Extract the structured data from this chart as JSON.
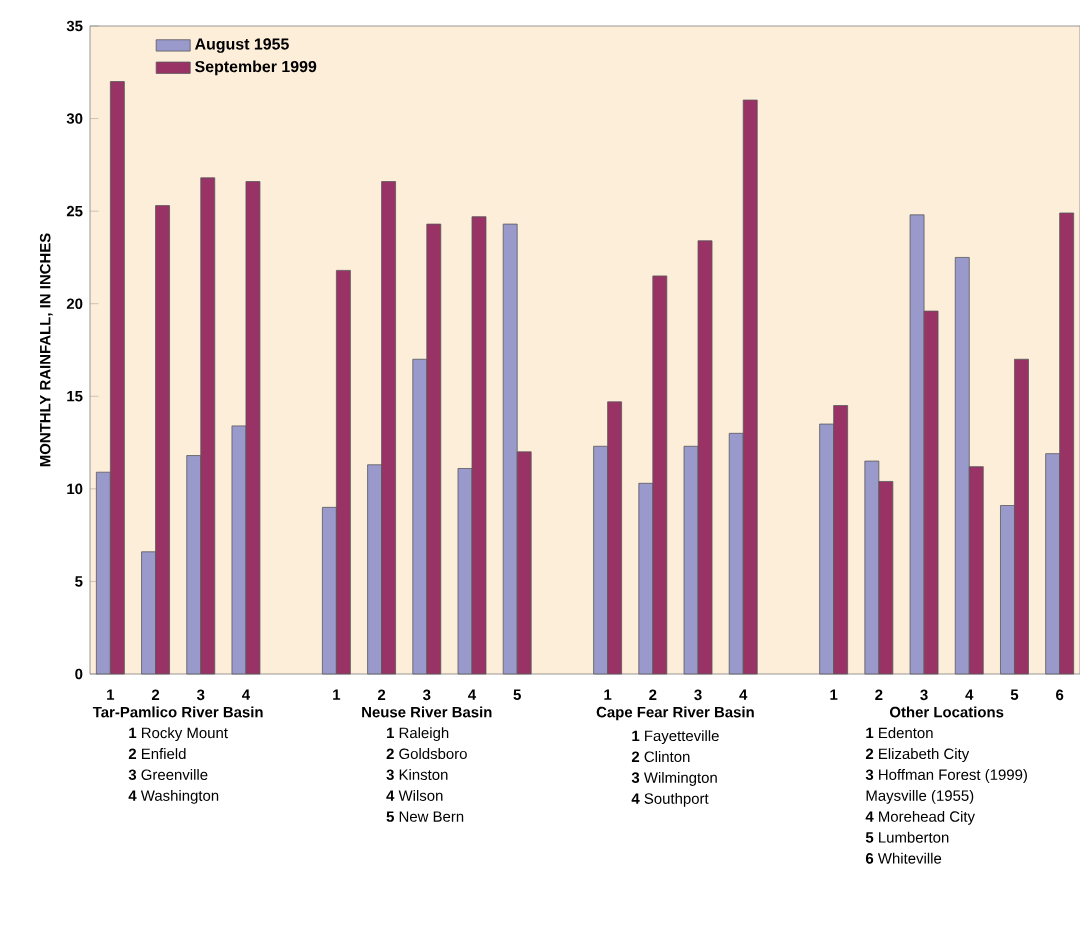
{
  "chart_data": {
    "type": "bar",
    "ylabel": "MONTHLY RAINFALL, IN INCHES",
    "categories": [
      "1",
      "2",
      "3",
      "4",
      null,
      "1",
      "2",
      "3",
      "4",
      "5",
      null,
      "1",
      "2",
      "3",
      "4",
      null,
      "1",
      "2",
      "3",
      "4",
      "5",
      "6"
    ],
    "series": [
      {
        "name": "August 1955",
        "color": "#9999cc",
        "values": [
          10.9,
          6.6,
          11.8,
          13.4,
          null,
          9.0,
          11.3,
          17.0,
          11.1,
          24.3,
          null,
          12.3,
          10.3,
          12.3,
          13.0,
          null,
          13.5,
          11.5,
          24.8,
          22.5,
          9.1,
          11.9
        ]
      },
      {
        "name": "September 1999",
        "color": "#993366",
        "values": [
          32.0,
          25.3,
          26.8,
          26.6,
          null,
          21.8,
          26.6,
          24.3,
          24.7,
          12.0,
          null,
          14.7,
          21.5,
          23.4,
          31.0,
          null,
          14.5,
          10.4,
          19.6,
          11.2,
          17.0,
          24.9
        ]
      }
    ],
    "ylim": [
      0,
      35
    ],
    "yticks": [
      0,
      5,
      10,
      15,
      20,
      25,
      30,
      35
    ],
    "legend": "top left",
    "grid": false,
    "annotations": [
      "Tar-Pamlico River Basin",
      "**1** Rocky Mount",
      "**2** Enfield",
      "**3** Greenville",
      "**4** Washington",
      "Neuse River Basin",
      "**1** Raleigh",
      "**2** Goldsboro",
      "**3** Kinston",
      "**4** Wilson",
      "**5** New Bern",
      "Cape Fear River Basin",
      "**1** Fayetteville",
      "**2** Clinton",
      "**3** Wilmington",
      "**4** Southport",
      "Other Locations",
      "**1** Edenton",
      "**2** Elizabeth City",
      "**3** Hoffman Forest (1999)",
      "Maysville (1955)",
      "**4** Morehead City",
      "**5** Lumberton",
      "**6** Whiteville"
    ]
  }
}
